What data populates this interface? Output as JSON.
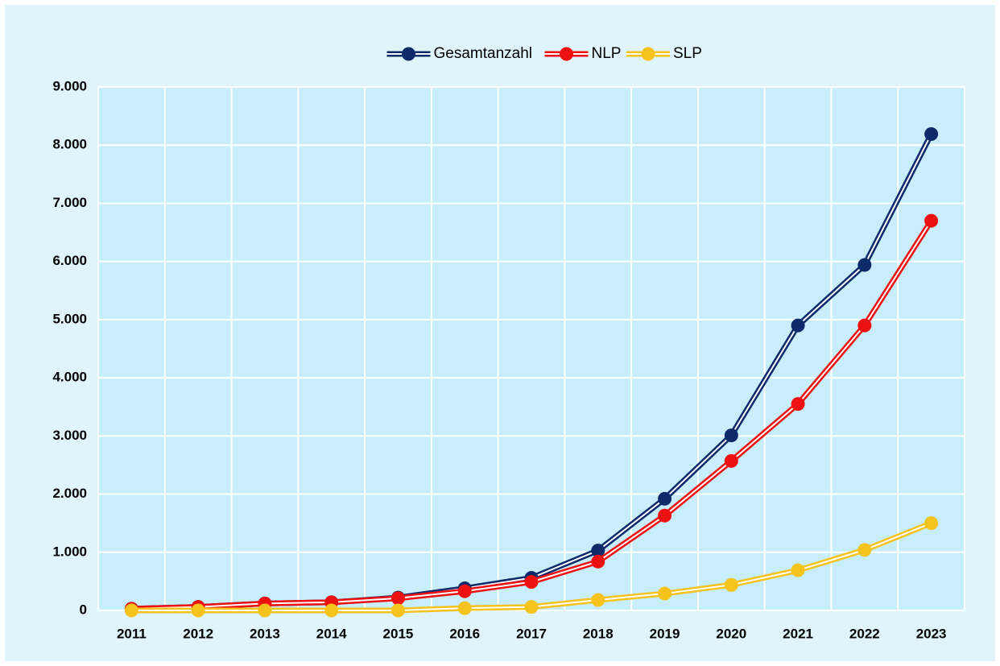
{
  "chart_data": {
    "type": "line",
    "categories": [
      "2011",
      "2012",
      "2013",
      "2014",
      "2015",
      "2016",
      "2017",
      "2018",
      "2019",
      "2020",
      "2021",
      "2022",
      "2023"
    ],
    "series": [
      {
        "name": "Gesamtanzahl",
        "color": "#0d2a6b",
        "values": [
          30,
          60,
          120,
          140,
          220,
          380,
          560,
          1030,
          1920,
          3010,
          4900,
          5940,
          8190
        ]
      },
      {
        "name": "NLP",
        "color": "#ee1111",
        "values": [
          30,
          60,
          120,
          140,
          210,
          330,
          490,
          840,
          1630,
          2570,
          3550,
          4900,
          6700
        ]
      },
      {
        "name": "SLP",
        "color": "#f6c21c",
        "values": [
          0,
          0,
          0,
          0,
          0,
          40,
          60,
          180,
          290,
          440,
          690,
          1040,
          1500
        ]
      }
    ],
    "ylim": [
      0,
      9000
    ],
    "yticks": [
      0,
      {
        "value": 1000,
        "label": "1.000"
      },
      {
        "value": 2000,
        "label": "2.000"
      },
      {
        "value": 3000,
        "label": "3.000"
      },
      {
        "value": 4000,
        "label": "4.000"
      },
      {
        "value": 5000,
        "label": "5.000"
      },
      {
        "value": 6000,
        "label": "6.000"
      },
      {
        "value": 7000,
        "label": "7.000"
      },
      {
        "value": 8000,
        "label": "8.000"
      },
      {
        "value": 9000,
        "label": "9.000"
      }
    ],
    "grid": true,
    "legend": "top"
  }
}
